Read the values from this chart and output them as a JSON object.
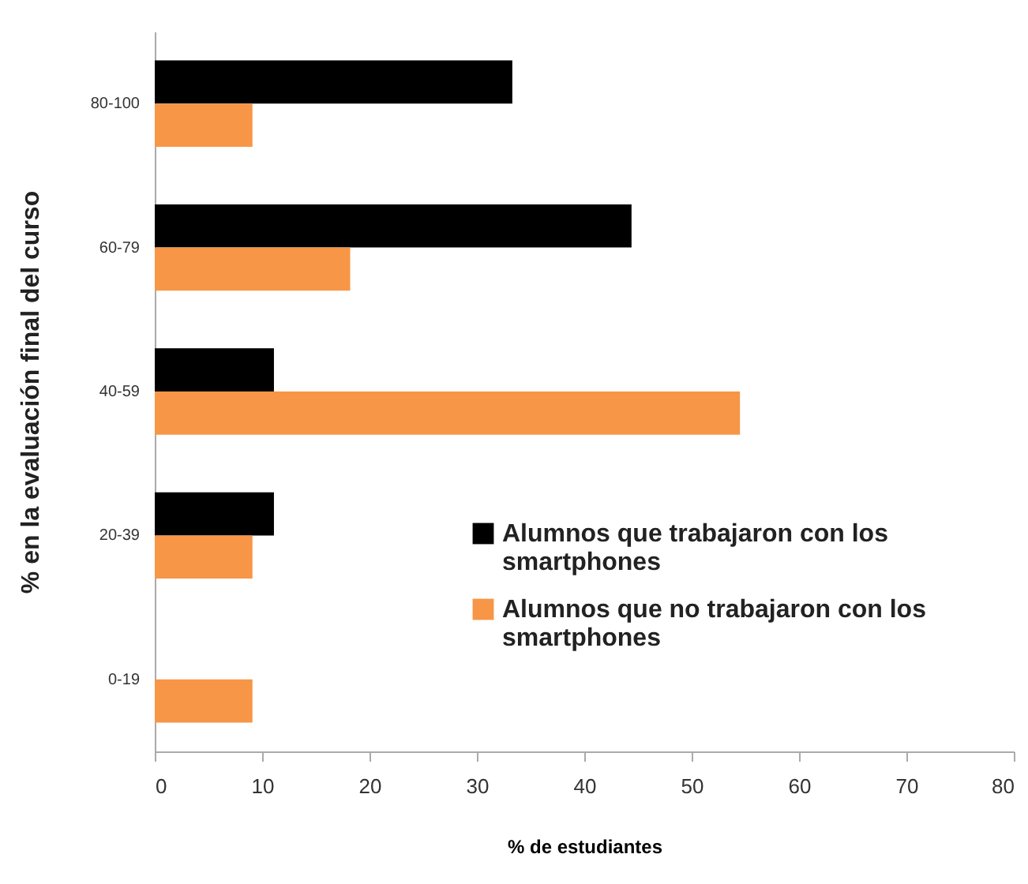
{
  "chart_data": {
    "type": "bar",
    "orientation": "horizontal",
    "xlabel": "% de estudiantes",
    "ylabel": "% en la evaluación final del curso",
    "categories": [
      "80-100",
      "60-79",
      "40-59",
      "20-39",
      "0-19"
    ],
    "series": [
      {
        "name": "Alumnos que trabajaron con los smartphones",
        "color": "#000000",
        "values": [
          33.3,
          44.4,
          11.1,
          11.1,
          0
        ]
      },
      {
        "name": "Alumnos que no trabajaron con los smartphones",
        "color": "#f79646",
        "values": [
          9.1,
          18.2,
          54.5,
          9.1,
          9.1
        ]
      }
    ],
    "xlim": [
      0,
      80
    ],
    "xticks": [
      0,
      10,
      20,
      30,
      40,
      50,
      60,
      70,
      80
    ],
    "grid": false,
    "legend": "bottom right"
  }
}
